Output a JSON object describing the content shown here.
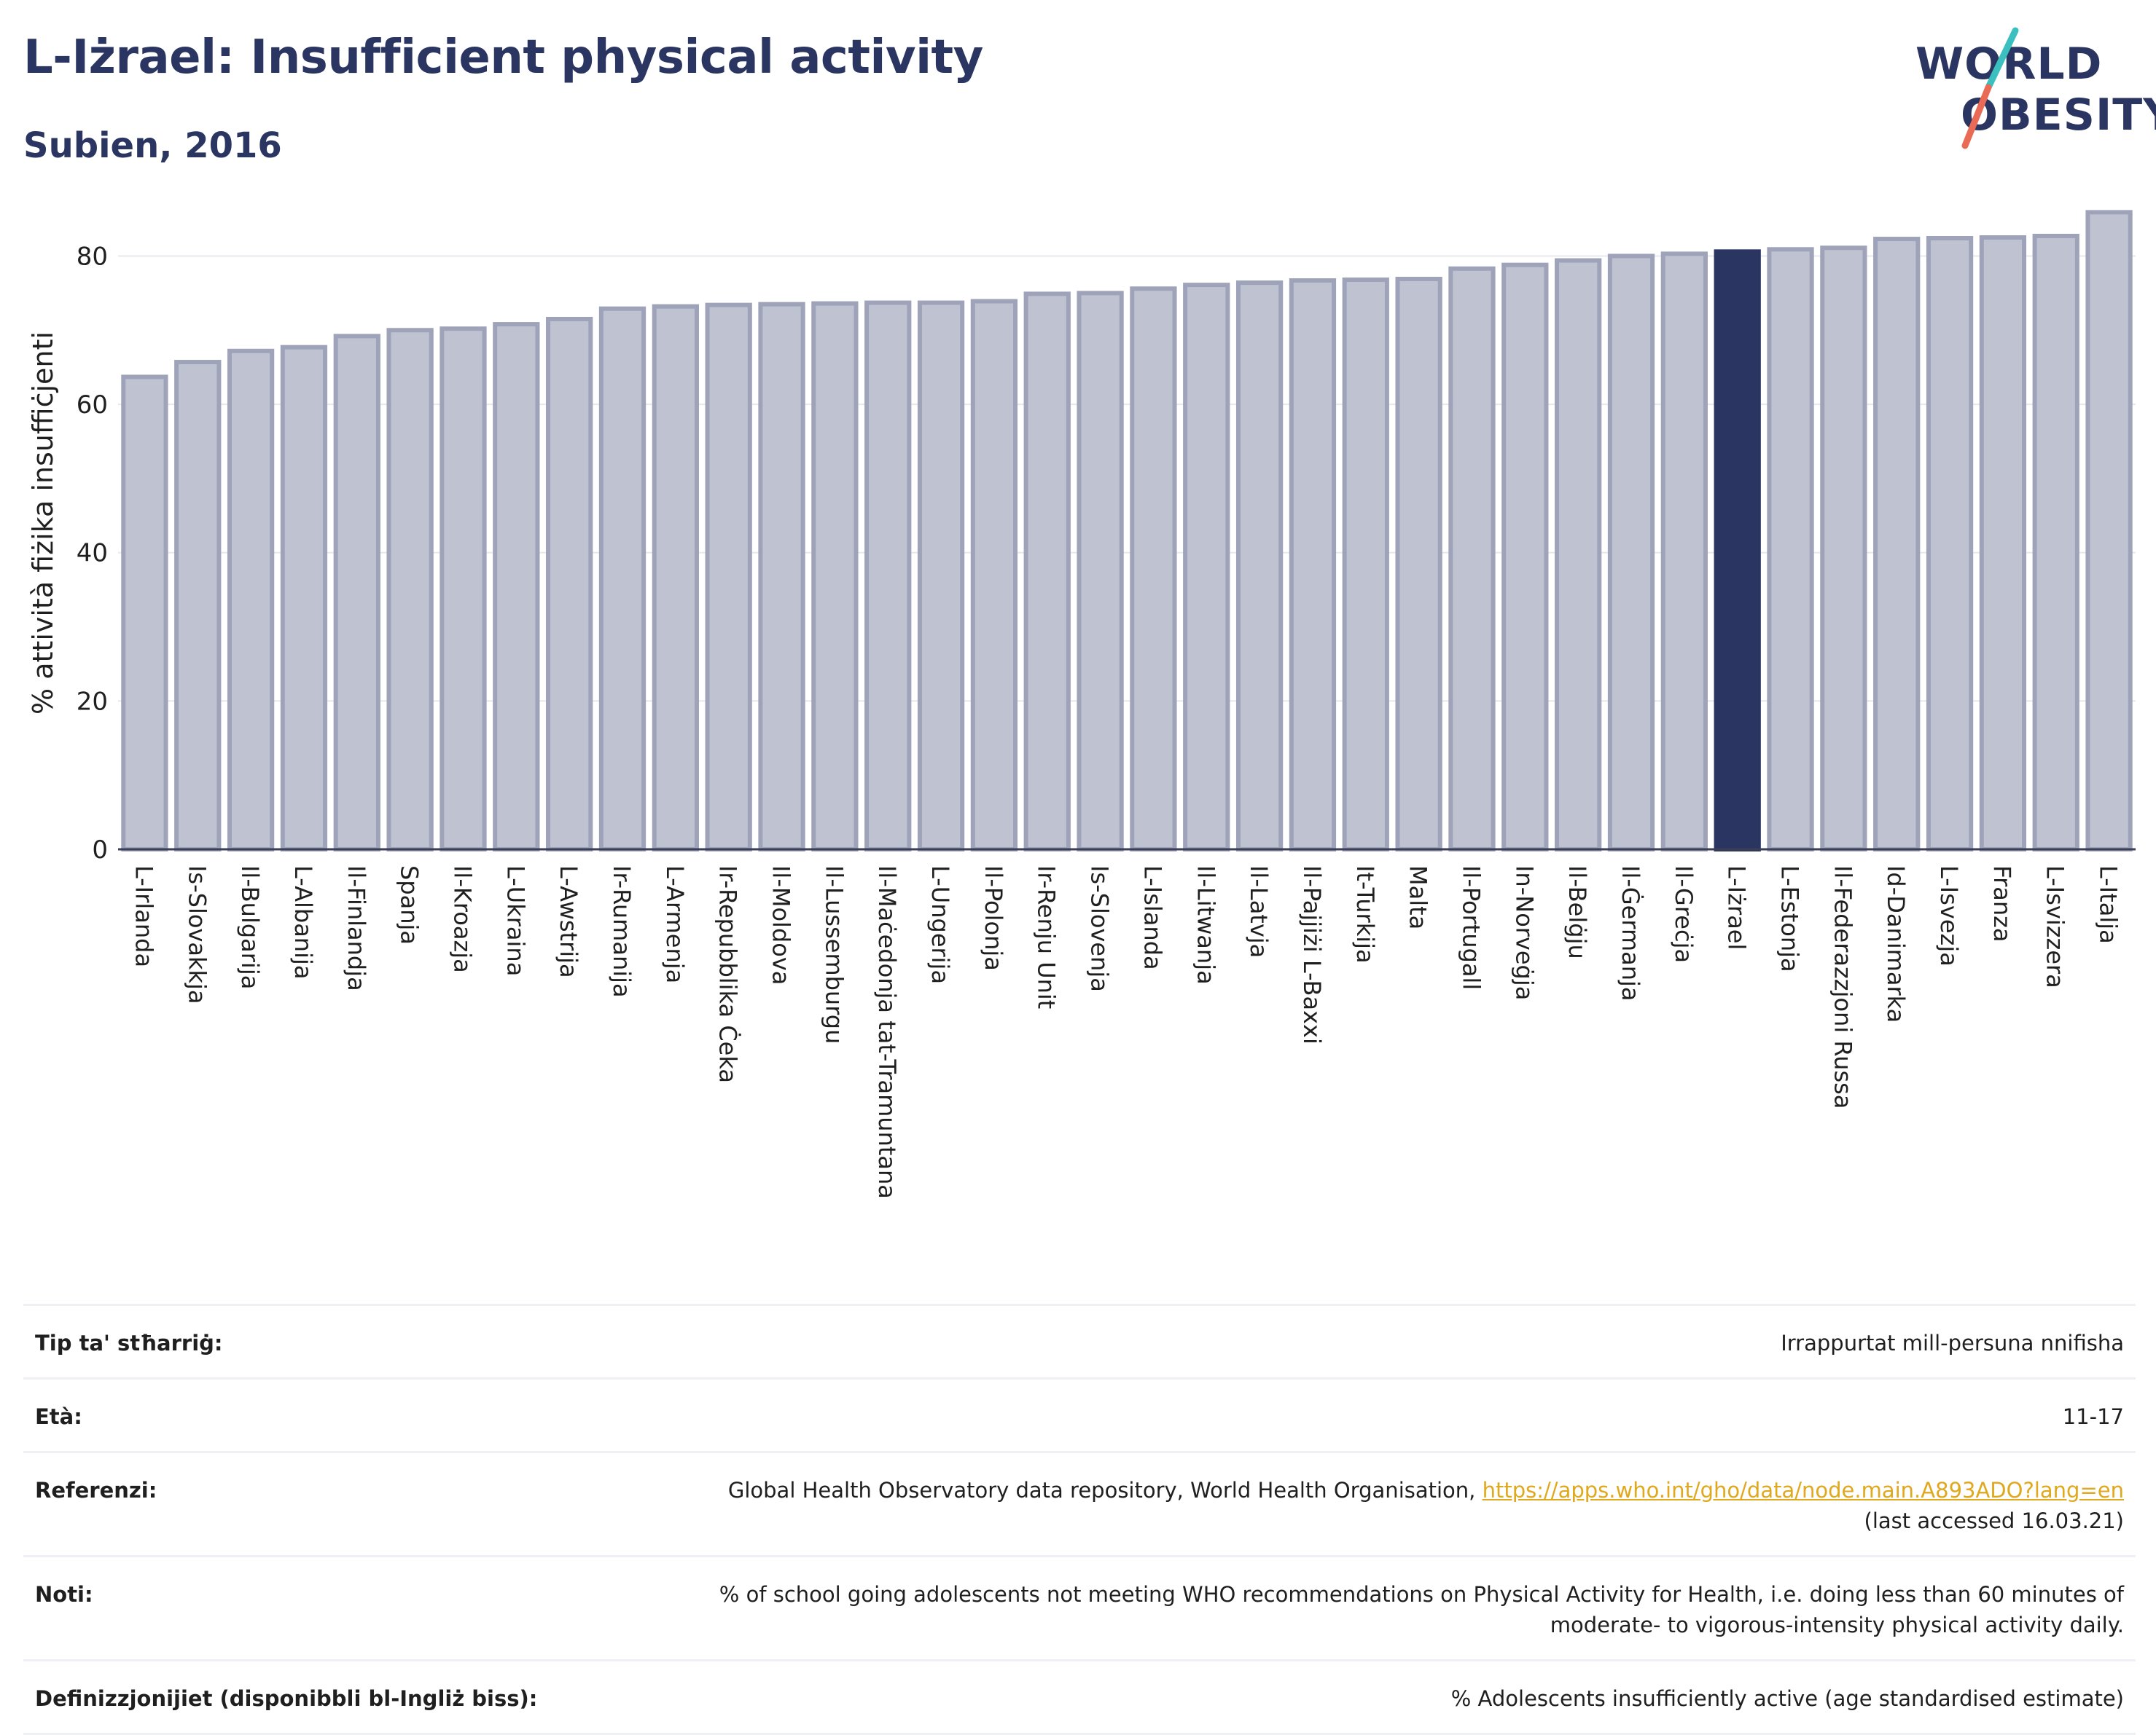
{
  "header": {
    "title": "L-Iżrael: Insufficient physical activity",
    "subtitle": "Subien, 2016"
  },
  "logo": {
    "line1": "WORLD",
    "line2": "OBESITY"
  },
  "colors": {
    "title": "#2b3561",
    "bar": "#bfc3d1",
    "bar_border": "#9ea3b9",
    "highlight": "#2b3561",
    "link": "#e0a81c",
    "logo_teal": "#3bbfbf",
    "logo_coral": "#e96b55"
  },
  "chart_data": {
    "type": "bar",
    "ylabel": "% attività fiżika insuffiċjenti",
    "ylim": [
      0,
      88
    ],
    "yticks": [
      0,
      20,
      40,
      60,
      80
    ],
    "grid": true,
    "highlight": "L-Iżrael",
    "categories": [
      "L-Irlanda",
      "Is-Slovakkja",
      "Il-Bulgarija",
      "L-Albanija",
      "Il-Finlandja",
      "Spanja",
      "Il-Kroazja",
      "L-Ukraina",
      "L-Awstrija",
      "Ir-Rumanija",
      "L-Armenja",
      "Ir-Repubblika Ċeka",
      "Il-Moldova",
      "Il-Lussemburgu",
      "Il-Maċedonja tat-Tramuntana",
      "L-Ungerija",
      "Il-Polonja",
      "Ir-Renju Unit",
      "Is-Slovenja",
      "L-Islanda",
      "Il-Litwanja",
      "Il-Latvja",
      "Il-Pajjiżi L-Baxxi",
      "It-Turkija",
      "Malta",
      "Il-Portugall",
      "In-Norveġja",
      "Il-Belġju",
      "Il-Ġermanja",
      "Il-Greċja",
      "L-Iżrael",
      "L-Estonja",
      "Il-Federazzjoni Russa",
      "Id-Danimarka",
      "L-Isvezja",
      "Franza",
      "L-Isvizzera",
      "L-Italja"
    ],
    "values": [
      63.7,
      65.7,
      67.2,
      67.7,
      69.2,
      70.0,
      70.2,
      70.8,
      71.5,
      72.9,
      73.2,
      73.4,
      73.5,
      73.6,
      73.7,
      73.7,
      73.9,
      74.9,
      75.0,
      75.6,
      76.1,
      76.4,
      76.7,
      76.8,
      76.9,
      78.3,
      78.8,
      79.4,
      80.0,
      80.3,
      80.6,
      80.9,
      81.1,
      82.3,
      82.4,
      82.5,
      82.7,
      85.9
    ]
  },
  "info": {
    "rows": [
      {
        "key": "Tip ta' stħarriġ:",
        "value": "Irrappurtat mill-persuna nnifisha"
      },
      {
        "key": "Età:",
        "value": "11-17"
      },
      {
        "key": "Referenzi:",
        "value": "Global Health Observatory data repository, World Health Organisation,",
        "link": "https://apps.who.int/gho/data/node.main.A893ADO?lang=en",
        "value2": "(last accessed 16.03.21)"
      },
      {
        "key": "Noti:",
        "value": "% of school going adolescents not meeting WHO recommendations on Physical Activity for Health, i.e. doing less than 60 minutes of",
        "value2": "moderate- to vigorous-intensity physical activity daily."
      },
      {
        "key": "Definizzjonijiet (disponibbli bl-Ingliż biss):",
        "value": "% Adolescents insufficiently active (age standardised estimate)"
      }
    ]
  }
}
